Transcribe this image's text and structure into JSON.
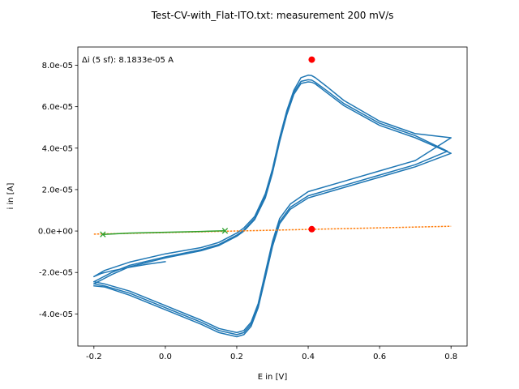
{
  "chart_data": {
    "type": "line",
    "title": "Test-CV-with_Flat-ITO.txt: measurement 200 mV/s",
    "xlabel": "E in [V]",
    "ylabel": "i in [A]",
    "xlim": [
      -0.245,
      0.845
    ],
    "ylim": [
      -5.55e-05,
      8.88e-05
    ],
    "x_ticks": [
      -0.2,
      0.0,
      0.2,
      0.4,
      0.6,
      0.8
    ],
    "x_tick_labels": [
      "-0.2",
      "0.0",
      "0.2",
      "0.4",
      "0.6",
      "0.8"
    ],
    "y_ticks": [
      -4e-05,
      -2e-05,
      0.0,
      2e-05,
      4e-05,
      6e-05,
      8e-05
    ],
    "y_tick_labels": [
      "-4.0e-05",
      "-2.0e-05",
      "0.0e+00",
      "2.0e-05",
      "4.0e-05",
      "6.0e-05",
      "8.0e-05"
    ],
    "grid": false,
    "annotation": "Δi (5 sf): 8.1833e-05 A",
    "colors": {
      "cv": "#1f77b4",
      "baseline": "#ff7f0e",
      "fit": "#2ca02c",
      "peak": "#ff0000"
    },
    "series": [
      {
        "kind": "cv",
        "x": [
          0.0,
          -0.05,
          -0.1,
          -0.15,
          -0.18,
          -0.2,
          -0.17,
          -0.1,
          0.0,
          0.1,
          0.15,
          0.2,
          0.22,
          0.25,
          0.28,
          0.3,
          0.32,
          0.34,
          0.36,
          0.38,
          0.4,
          0.41,
          0.42,
          0.45,
          0.5,
          0.6,
          0.7,
          0.8,
          0.7,
          0.6,
          0.5,
          0.4,
          0.35,
          0.32,
          0.3,
          0.28,
          0.26,
          0.24,
          0.22,
          0.2,
          0.15,
          0.1,
          0.0,
          -0.1,
          -0.17,
          -0.2
        ],
        "y": [
          -1.48e-05,
          -1.6e-05,
          -1.75e-05,
          -1.92e-05,
          -2.05e-05,
          -2.2e-05,
          -1.9e-05,
          -1.5e-05,
          -1.1e-05,
          -8e-06,
          -5.5e-06,
          -1e-06,
          1.5e-06,
          7e-06,
          1.8e-05,
          3e-05,
          4.5e-05,
          5.8e-05,
          6.8e-05,
          7.4e-05,
          7.52e-05,
          7.5e-05,
          7.4e-05,
          7e-05,
          6.3e-05,
          5.3e-05,
          4.7e-05,
          4.5e-05,
          3.4e-05,
          2.9e-05,
          2.4e-05,
          1.9e-05,
          1.3e-05,
          6e-06,
          -5e-06,
          -2e-05,
          -3.5e-05,
          -4.4e-05,
          -4.8e-05,
          -4.9e-05,
          -4.7e-05,
          -4.3e-05,
          -3.6e-05,
          -2.9e-05,
          -2.55e-05,
          -2.45e-05
        ]
      },
      {
        "kind": "cv",
        "x": [
          -0.2,
          -0.15,
          -0.1,
          0.0,
          0.1,
          0.15,
          0.2,
          0.22,
          0.25,
          0.28,
          0.3,
          0.32,
          0.34,
          0.36,
          0.38,
          0.4,
          0.41,
          0.42,
          0.45,
          0.5,
          0.6,
          0.7,
          0.79,
          0.7,
          0.6,
          0.5,
          0.4,
          0.35,
          0.32,
          0.3,
          0.28,
          0.26,
          0.24,
          0.22,
          0.2,
          0.15,
          0.1,
          0.0,
          -0.1,
          -0.17,
          -0.2
        ],
        "y": [
          -2.45e-05,
          -2e-05,
          -1.65e-05,
          -1.25e-05,
          -9e-06,
          -6.5e-06,
          -2e-06,
          5e-07,
          6e-06,
          1.7e-05,
          2.9e-05,
          4.4e-05,
          5.7e-05,
          6.7e-05,
          7.22e-05,
          7.3e-05,
          7.28e-05,
          7.18e-05,
          6.8e-05,
          6.15e-05,
          5.2e-05,
          4.6e-05,
          3.85e-05,
          3.2e-05,
          2.7e-05,
          2.2e-05,
          1.7e-05,
          1.15e-05,
          4.5e-06,
          -6.5e-06,
          -2.15e-05,
          -3.6e-05,
          -4.5e-05,
          -4.9e-05,
          -5e-05,
          -4.8e-05,
          -4.4e-05,
          -3.7e-05,
          -3e-05,
          -2.65e-05,
          -2.55e-05
        ]
      },
      {
        "kind": "cv",
        "x": [
          -0.2,
          -0.15,
          -0.1,
          0.0,
          0.1,
          0.15,
          0.2,
          0.22,
          0.25,
          0.28,
          0.3,
          0.32,
          0.34,
          0.36,
          0.38,
          0.4,
          0.41,
          0.42,
          0.45,
          0.5,
          0.6,
          0.7,
          0.8,
          0.7,
          0.6,
          0.5,
          0.4,
          0.35,
          0.32,
          0.3,
          0.28,
          0.26,
          0.24,
          0.22,
          0.2,
          0.15,
          0.1,
          0.0,
          -0.1,
          -0.17,
          -0.2
        ],
        "y": [
          -2.55e-05,
          -2.1e-05,
          -1.72e-05,
          -1.3e-05,
          -9.5e-06,
          -7e-06,
          -2.5e-06,
          0.0,
          5.5e-06,
          1.6e-05,
          2.8e-05,
          4.3e-05,
          5.6e-05,
          6.6e-05,
          7.12e-05,
          7.2e-05,
          7.18e-05,
          7.1e-05,
          6.7e-05,
          6.05e-05,
          5.1e-05,
          4.5e-05,
          3.75e-05,
          3.1e-05,
          2.6e-05,
          2.1e-05,
          1.6e-05,
          1.05e-05,
          3.5e-06,
          -7.5e-06,
          -2.25e-05,
          -3.7e-05,
          -4.6e-05,
          -5e-05,
          -5.1e-05,
          -4.9e-05,
          -4.5e-05,
          -3.8e-05,
          -3.1e-05,
          -2.7e-05,
          -2.65e-05
        ]
      },
      {
        "kind": "baseline",
        "x": [
          -0.2,
          0.8
        ],
        "y": [
          -1.5e-06,
          2.3e-06
        ]
      },
      {
        "kind": "fit",
        "x": [
          -0.175,
          -0.1,
          0.0,
          0.1,
          0.167
        ],
        "y": [
          -1.6e-06,
          -1e-06,
          -6e-07,
          -2e-07,
          1e-07
        ]
      }
    ],
    "fit_markers": {
      "x": [
        -0.175,
        0.167
      ],
      "y": [
        -1.6e-06,
        1e-07
      ]
    },
    "peak_markers": {
      "x": [
        0.41,
        0.41
      ],
      "y": [
        8.27e-05,
        9e-07
      ]
    }
  }
}
